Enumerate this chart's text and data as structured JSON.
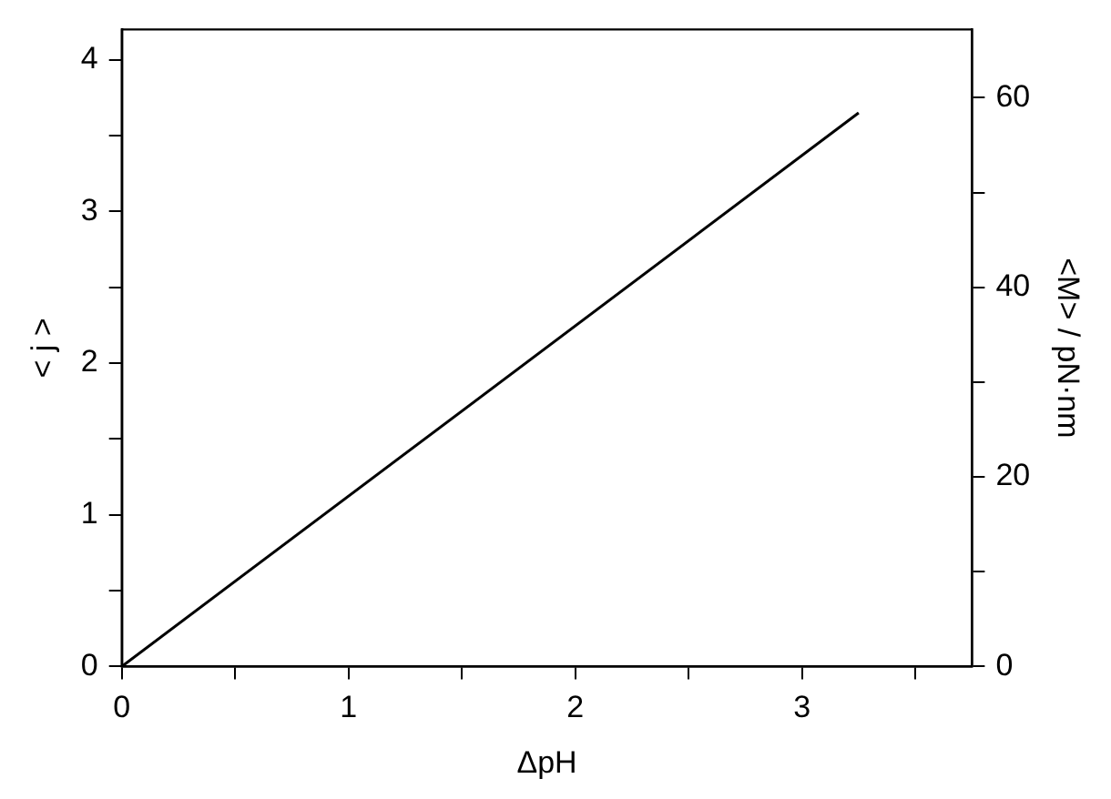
{
  "chart_data": {
    "type": "line",
    "xlabel": "ΔpH",
    "ylabel": "< j >",
    "y2label": "<M> / pN·nm",
    "x": [
      0,
      3.25
    ],
    "series": [
      {
        "color": "#000000",
        "values": [
          0,
          3.65
        ]
      }
    ],
    "xlim": [
      0,
      3.75
    ],
    "xticks": [
      0,
      {
        "value": 0.5,
        "label": null
      },
      1,
      {
        "value": 1.5,
        "label": null
      },
      2,
      {
        "value": 2.5,
        "label": null
      },
      3,
      {
        "value": 3.5,
        "label": null
      }
    ],
    "ylim": [
      0,
      4.2
    ],
    "yticks": [
      0,
      {
        "value": 0.5,
        "label": null
      },
      1,
      {
        "value": 1.5,
        "label": null
      },
      2,
      {
        "value": 2.5,
        "label": null
      },
      3,
      {
        "value": 3.5,
        "label": null
      },
      4
    ],
    "y2lim": [
      0,
      67.2
    ],
    "y2ticks": [
      0,
      {
        "value": 10,
        "label": null
      },
      20,
      {
        "value": 30,
        "label": null
      },
      40,
      {
        "value": 50,
        "label": null
      },
      60
    ],
    "grid": false,
    "legend": false,
    "marker": "none",
    "line_style": "solid"
  }
}
